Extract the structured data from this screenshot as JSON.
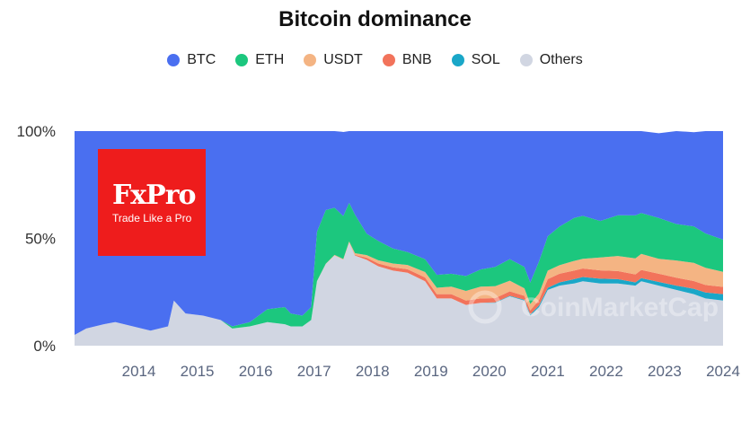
{
  "title": "Bitcoin dominance",
  "legend": [
    {
      "label": "BTC",
      "color": "#4a6ff0"
    },
    {
      "label": "ETH",
      "color": "#1cc77e"
    },
    {
      "label": "USDT",
      "color": "#f4b483"
    },
    {
      "label": "BNB",
      "color": "#f2735b"
    },
    {
      "label": "SOL",
      "color": "#1aa7c8"
    },
    {
      "label": "Others",
      "color": "#d1d6e2"
    }
  ],
  "logo": {
    "name": "FxPro",
    "tagline": "Trade Like a Pro"
  },
  "watermark": "CoinMarketCap",
  "chart_data": {
    "type": "area",
    "stacked": true,
    "title": "Bitcoin dominance",
    "ylim": [
      0,
      100
    ],
    "y_ticks": [
      "0%",
      "50%",
      "100%"
    ],
    "x_ticks": [
      "2014",
      "2015",
      "2016",
      "2017",
      "2018",
      "2019",
      "2020",
      "2021",
      "2022",
      "2023",
      "2024"
    ],
    "xlim": [
      2013.3,
      2024.4
    ],
    "legend_position": "top",
    "x": [
      2013.3,
      2013.5,
      2013.8,
      2014.0,
      2014.3,
      2014.6,
      2014.9,
      2015.0,
      2015.2,
      2015.5,
      2015.8,
      2016.0,
      2016.3,
      2016.6,
      2016.9,
      2017.0,
      2017.2,
      2017.35,
      2017.45,
      2017.6,
      2017.75,
      2017.9,
      2018.0,
      2018.1,
      2018.3,
      2018.5,
      2018.75,
      2019.0,
      2019.3,
      2019.5,
      2019.75,
      2020.0,
      2020.25,
      2020.5,
      2020.75,
      2021.0,
      2021.1,
      2021.25,
      2021.4,
      2021.6,
      2021.85,
      2022.0,
      2022.3,
      2022.6,
      2022.9,
      2023.0,
      2023.3,
      2023.6,
      2023.9,
      2024.1,
      2024.4
    ],
    "series": [
      {
        "name": "Others",
        "values": [
          5,
          8,
          10,
          11,
          9,
          7,
          9,
          21,
          15,
          14,
          12,
          8,
          9,
          11,
          10,
          9,
          9,
          12,
          30,
          38,
          42,
          40,
          48,
          42,
          40,
          37,
          35,
          34,
          30,
          22,
          22,
          19,
          20,
          20,
          23,
          21,
          14,
          18,
          26,
          28,
          29,
          30,
          29,
          29,
          28,
          30,
          28,
          26,
          24,
          22,
          21
        ]
      },
      {
        "name": "SOL",
        "values": [
          0,
          0,
          0,
          0,
          0,
          0,
          0,
          0,
          0,
          0,
          0,
          0,
          0,
          0,
          0,
          0,
          0,
          0,
          0,
          0,
          0,
          0,
          0,
          0,
          0,
          0,
          0,
          0,
          0,
          0,
          0,
          0,
          0,
          0.2,
          0.3,
          0.4,
          0.6,
          0.8,
          1.0,
          1.5,
          2.0,
          2.0,
          2.2,
          2.0,
          1.5,
          1.5,
          1.7,
          2.0,
          2.5,
          2.8,
          3.0
        ]
      },
      {
        "name": "BNB",
        "values": [
          0,
          0,
          0,
          0,
          0,
          0,
          0,
          0,
          0,
          0,
          0,
          0,
          0,
          0,
          0,
          0,
          0,
          0,
          0,
          0,
          0,
          0,
          0,
          0.3,
          1.0,
          1.3,
          1.5,
          1.6,
          1.8,
          2.0,
          2.0,
          2.0,
          2.0,
          2.0,
          2.0,
          1.8,
          1.8,
          2.5,
          4.0,
          4.0,
          4.0,
          4.0,
          3.9,
          3.8,
          3.7,
          3.8,
          3.8,
          3.7,
          3.6,
          3.5,
          3.4
        ]
      },
      {
        "name": "USDT",
        "values": [
          0,
          0,
          0,
          0,
          0,
          0,
          0,
          0,
          0,
          0,
          0,
          0,
          0,
          0,
          0,
          0,
          0,
          0,
          0.1,
          0.2,
          0.3,
          0.4,
          0.6,
          0.8,
          1.2,
          1.5,
          1.8,
          2.0,
          2.5,
          3.0,
          3.5,
          4.5,
          5.5,
          5.5,
          5.0,
          3.5,
          3.0,
          3.0,
          4.0,
          4.0,
          4.5,
          4.5,
          6.0,
          7.0,
          7.5,
          7.5,
          7.0,
          8.0,
          8.5,
          8.0,
          7.0
        ]
      },
      {
        "name": "ETH",
        "values": [
          0,
          0,
          0,
          0,
          0,
          0,
          0,
          0,
          0,
          0,
          0,
          1,
          2,
          6,
          8,
          6,
          5,
          6,
          23,
          25,
          22,
          20,
          18,
          18,
          10,
          9,
          7,
          6,
          6,
          6,
          6,
          7,
          8,
          9,
          10,
          10,
          10,
          15,
          16,
          18,
          20,
          20,
          17,
          19,
          20,
          19,
          19,
          17,
          17,
          16,
          15
        ]
      },
      {
        "name": "BTC",
        "values": [
          95,
          92,
          90,
          89,
          91,
          93,
          91,
          79,
          85,
          86,
          88,
          91,
          89,
          83,
          82,
          85,
          86,
          82,
          46.9,
          36.8,
          35.7,
          39.2,
          33.4,
          38.9,
          47.8,
          51.2,
          54.7,
          56.4,
          59.7,
          67,
          66.5,
          67.5,
          64.5,
          63.3,
          59.7,
          63.3,
          70.6,
          60.7,
          49,
          44.5,
          40.5,
          39.5,
          41.9,
          39.2,
          39.3,
          38.2,
          39.5,
          43.3,
          43.9,
          47.7,
          50.6
        ]
      }
    ]
  }
}
